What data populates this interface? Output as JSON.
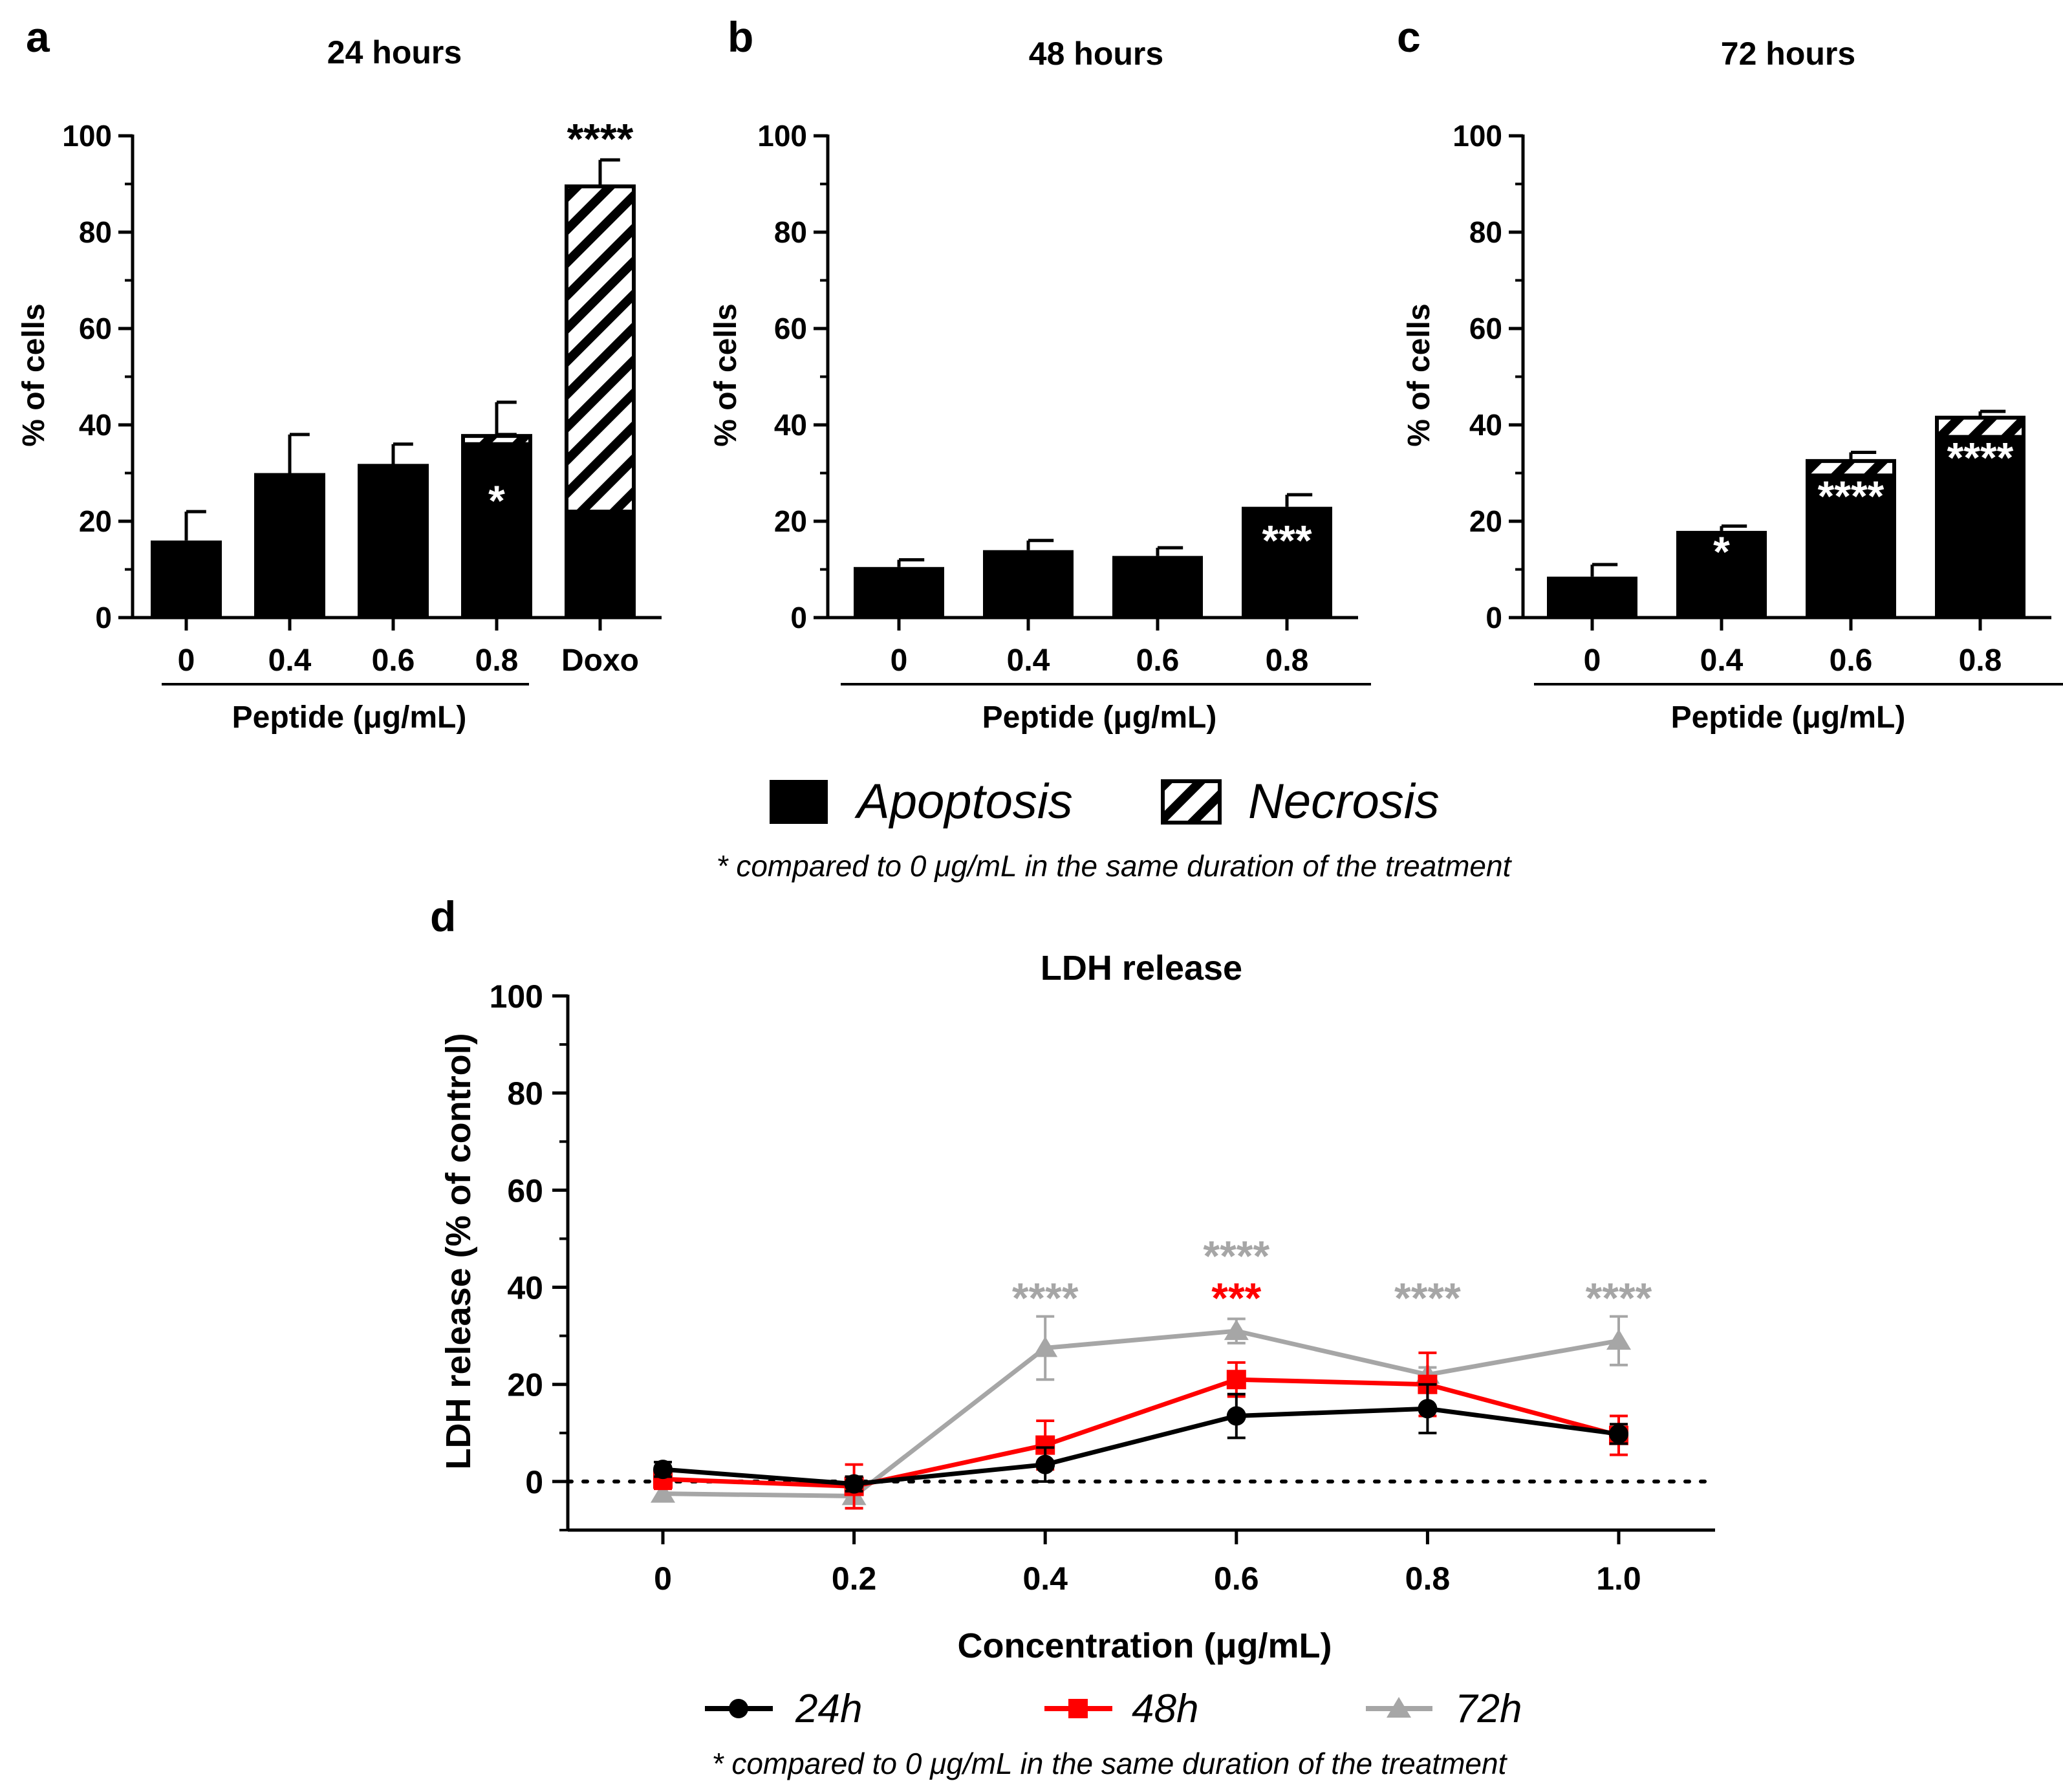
{
  "legend_bars": {
    "apoptosis": "Apoptosis",
    "necrosis": "Necrosis"
  },
  "footnote_top": "* compared to 0 μg/mL in the same duration of the treatment",
  "footnote_bottom": "* compared to 0 μg/mL in the same duration of the treatment",
  "chart_data": [
    {
      "panel": "a",
      "type": "bar",
      "stacked": true,
      "title": "24 hours",
      "ylabel": "% of cells",
      "xlabel": "Peptide (μg/mL)",
      "ylim": [
        0,
        100
      ],
      "yticks": [
        "0",
        "20",
        "40",
        "60",
        "80",
        "100"
      ],
      "categories": [
        "0",
        "0.4",
        "0.6",
        "0.8",
        "Doxo"
      ],
      "series": [
        {
          "name": "Apoptosis",
          "values": [
            16,
            30,
            31,
            36,
            22
          ],
          "errors": [
            6,
            8,
            5,
            2,
            5.5
          ]
        },
        {
          "name": "Necrosis",
          "values": [
            0,
            0,
            0.5,
            1.7,
            67.5
          ],
          "errors": [
            0,
            0,
            0,
            7,
            5.5
          ]
        }
      ],
      "annotations": [
        "",
        "",
        "",
        "*",
        "****"
      ]
    },
    {
      "panel": "b",
      "type": "bar",
      "stacked": true,
      "title": "48 hours",
      "ylabel": "% of cells",
      "xlabel": "Peptide (μg/mL)",
      "ylim": [
        0,
        100
      ],
      "yticks": [
        "0",
        "20",
        "40",
        "60",
        "80",
        "100"
      ],
      "categories": [
        "0",
        "0.4",
        "0.6",
        "0.8"
      ],
      "series": [
        {
          "name": "Apoptosis",
          "values": [
            10.5,
            14,
            12.8,
            23
          ],
          "errors": [
            1.5,
            2,
            1.7,
            2.5
          ]
        },
        {
          "name": "Necrosis",
          "values": [
            0,
            0,
            0,
            0
          ],
          "errors": [
            0,
            0,
            0,
            0
          ]
        }
      ],
      "annotations": [
        "",
        "",
        "",
        "***"
      ]
    },
    {
      "panel": "c",
      "type": "bar",
      "stacked": true,
      "title": "72 hours",
      "ylabel": "% of cells",
      "xlabel": "Peptide (μg/mL)",
      "ylim": [
        0,
        100
      ],
      "yticks": [
        "0",
        "20",
        "40",
        "60",
        "80",
        "100"
      ],
      "categories": [
        "0",
        "0.4",
        "0.6",
        "0.8"
      ],
      "series": [
        {
          "name": "Apoptosis",
          "values": [
            8.5,
            18,
            29.5,
            37.5
          ],
          "errors": [
            2.5,
            1,
            0,
            0
          ]
        },
        {
          "name": "Necrosis",
          "values": [
            0,
            0,
            3,
            4
          ],
          "errors": [
            0,
            0,
            1.8,
            1.3
          ]
        }
      ],
      "annotations": [
        "",
        "*",
        "****",
        "****"
      ]
    },
    {
      "panel": "d",
      "type": "line",
      "title": "LDH release",
      "xlabel": "Concentration (μg/mL)",
      "ylabel": "LDH release (% of control)",
      "ylim": [
        -10,
        100
      ],
      "yticks": [
        "0",
        "20",
        "40",
        "60",
        "80",
        "100"
      ],
      "x": [
        0,
        0.2,
        0.4,
        0.6,
        0.8,
        1.0
      ],
      "xticklabels": [
        "0",
        "0.2",
        "0.4",
        "0.6",
        "0.8",
        "1.0"
      ],
      "reference_line": 0,
      "series": [
        {
          "name": "24h",
          "color": "#000000",
          "marker": "circle",
          "values": [
            2.5,
            -0.5,
            3.5,
            13.5,
            15,
            9.8
          ],
          "errors": [
            1.5,
            1.5,
            3.5,
            4.5,
            5,
            2
          ]
        },
        {
          "name": "48h",
          "color": "#ff0000",
          "marker": "square",
          "values": [
            0.5,
            -1,
            7.5,
            21,
            20,
            9.5
          ],
          "errors": [
            2,
            4.5,
            5,
            3.5,
            6.5,
            4
          ]
        },
        {
          "name": "72h",
          "color": "#a6a6a6",
          "marker": "triangle",
          "values": [
            -2.5,
            -3,
            27.5,
            31,
            22,
            29
          ],
          "errors": [
            1.5,
            2.5,
            6.5,
            2.5,
            1.5,
            5
          ]
        }
      ],
      "annotations": [
        {
          "x": 0.4,
          "text": "****",
          "color": "#a6a6a6",
          "row": 0
        },
        {
          "x": 0.6,
          "text": "****",
          "color": "#a6a6a6",
          "row": 1
        },
        {
          "x": 0.6,
          "text": "***",
          "color": "#ff0000",
          "row": 0
        },
        {
          "x": 0.8,
          "text": "****",
          "color": "#a6a6a6",
          "row": 0
        },
        {
          "x": 1.0,
          "text": "****",
          "color": "#a6a6a6",
          "row": 0
        }
      ]
    }
  ],
  "panel_letters": [
    "a",
    "b",
    "c",
    "d"
  ]
}
